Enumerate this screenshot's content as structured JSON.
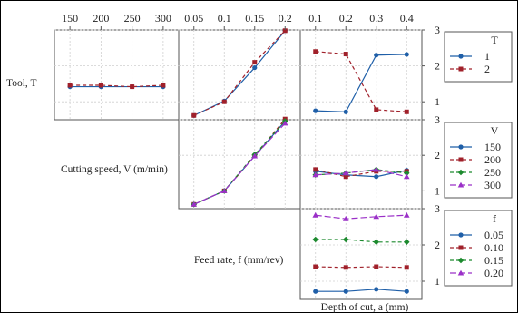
{
  "chart_data": [
    {
      "type": "line",
      "panel": "tool-x-speed",
      "xlabel": "",
      "ylabel": "Tool, T",
      "x": [
        150,
        200,
        250,
        300
      ],
      "xlim": [
        125,
        325
      ],
      "ylim": [
        0.5,
        3
      ],
      "grid": true,
      "series": [
        {
          "name": "1",
          "values": [
            1.42,
            1.42,
            1.42,
            1.42
          ]
        },
        {
          "name": "2",
          "values": [
            1.46,
            1.46,
            1.42,
            1.46
          ]
        }
      ]
    },
    {
      "type": "line",
      "panel": "tool-x-feed",
      "xlabel": "",
      "x": [
        0.05,
        0.1,
        0.15,
        0.2
      ],
      "xlim": [
        0.025,
        0.225
      ],
      "ylim": [
        0.5,
        3
      ],
      "grid": true,
      "series": [
        {
          "name": "1",
          "values": [
            0.62,
            1.02,
            1.95,
            2.98
          ]
        },
        {
          "name": "2",
          "values": [
            0.62,
            1.0,
            2.1,
            2.98
          ]
        }
      ]
    },
    {
      "type": "line",
      "panel": "tool-x-depth",
      "xlabel": "",
      "x": [
        0.1,
        0.2,
        0.3,
        0.4
      ],
      "xlim": [
        0.05,
        0.45
      ],
      "ylim": [
        0.5,
        3
      ],
      "grid": true,
      "series": [
        {
          "name": "1",
          "values": [
            0.75,
            0.72,
            2.3,
            2.32
          ]
        },
        {
          "name": "2",
          "values": [
            2.4,
            2.33,
            0.78,
            0.72
          ]
        }
      ]
    },
    {
      "type": "line",
      "panel": "speed-x-feed",
      "xlabel": "",
      "ylabel": "Cutting speed, V (m/min)",
      "x": [
        0.05,
        0.1,
        0.15,
        0.2
      ],
      "xlim": [
        0.025,
        0.225
      ],
      "ylim": [
        0.5,
        3
      ],
      "grid": true,
      "series": [
        {
          "name": "150",
          "values": [
            0.62,
            1.0,
            1.98,
            2.96
          ]
        },
        {
          "name": "200",
          "values": [
            0.62,
            1.0,
            1.98,
            3.02
          ]
        },
        {
          "name": "250",
          "values": [
            0.62,
            1.0,
            2.02,
            2.96
          ]
        },
        {
          "name": "300",
          "values": [
            0.62,
            1.0,
            1.98,
            2.9
          ]
        }
      ]
    },
    {
      "type": "line",
      "panel": "speed-x-depth",
      "xlabel": "",
      "x": [
        0.1,
        0.2,
        0.3,
        0.4
      ],
      "xlim": [
        0.05,
        0.45
      ],
      "ylim": [
        0.5,
        3
      ],
      "grid": true,
      "series": [
        {
          "name": "150",
          "values": [
            1.55,
            1.45,
            1.4,
            1.58
          ]
        },
        {
          "name": "200",
          "values": [
            1.6,
            1.4,
            1.55,
            1.55
          ]
        },
        {
          "name": "250",
          "values": [
            1.45,
            1.5,
            1.6,
            1.5
          ]
        },
        {
          "name": "300",
          "values": [
            1.45,
            1.5,
            1.6,
            1.4
          ]
        }
      ]
    },
    {
      "type": "line",
      "panel": "feed-x-depth",
      "xlabel": "Depth of cut, a (mm)",
      "ylabel": "Feed rate, f (mm/rev)",
      "x": [
        0.1,
        0.2,
        0.3,
        0.4
      ],
      "xlim": [
        0.05,
        0.45
      ],
      "ylim": [
        0.5,
        3
      ],
      "grid": true,
      "series": [
        {
          "name": "0.05",
          "values": [
            0.72,
            0.72,
            0.78,
            0.72
          ]
        },
        {
          "name": "0.10",
          "values": [
            1.4,
            1.38,
            1.4,
            1.38
          ]
        },
        {
          "name": "0.15",
          "values": [
            2.15,
            2.15,
            2.08,
            2.08
          ]
        },
        {
          "name": "0.20",
          "values": [
            2.82,
            2.72,
            2.78,
            2.82
          ]
        }
      ]
    }
  ],
  "top_ticks": {
    "speed": [
      "150",
      "200",
      "250",
      "300"
    ],
    "feed": [
      "0.05",
      "0.1",
      "0.15",
      "0.2"
    ],
    "depth": [
      "0.1",
      "0.2",
      "0.3",
      "0.4"
    ]
  },
  "right_ticks": [
    "1",
    "2",
    "3"
  ],
  "row_labels": [
    "Tool, T",
    "Cutting speed, V (m/min)",
    "Feed rate, f (mm/rev)"
  ],
  "bottom_label": "Depth of cut, a (mm)",
  "legends": [
    {
      "title": "T",
      "entries": [
        "1",
        "2"
      ]
    },
    {
      "title": "V",
      "entries": [
        "150",
        "200",
        "250",
        "300"
      ]
    },
    {
      "title": "f",
      "entries": [
        "0.05",
        "0.10",
        "0.15",
        "0.20"
      ]
    }
  ],
  "styles": [
    {
      "color": "#1f5fa8",
      "dash": "",
      "marker": "circle"
    },
    {
      "color": "#a0202a",
      "dash": "4,3",
      "marker": "square"
    },
    {
      "color": "#1c8a2e",
      "dash": "4,3",
      "marker": "diamond"
    },
    {
      "color": "#9b30c8",
      "dash": "7,3",
      "marker": "triangle"
    }
  ]
}
